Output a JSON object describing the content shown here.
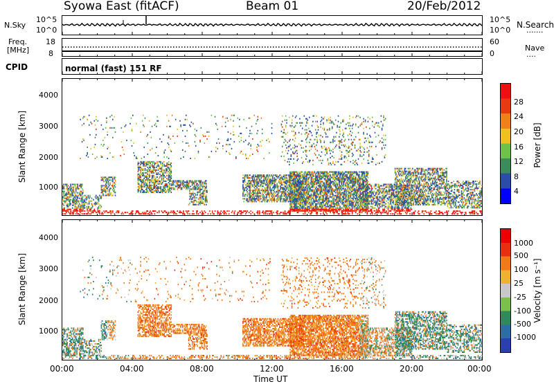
{
  "header": {
    "station": "Syowa East (fitACF)",
    "beam": "Beam 01",
    "date": "20/Feb/2012"
  },
  "panels": {
    "nsky": {
      "label": "N.Sky",
      "left_ticks": [
        "10^5",
        "10^0"
      ],
      "right_label": "N.Search",
      "right_ticks": [
        "10^5",
        "10^0"
      ],
      "right_marker": "......."
    },
    "freq": {
      "label_line1": "Freq.",
      "label_line2": "[MHz]",
      "left_ticks": [
        "18",
        "8"
      ],
      "right_label": "Nave",
      "right_ticks": [
        "60",
        "0"
      ],
      "right_marker": "...."
    },
    "cpid": {
      "label": "CPID",
      "text": "normal (fast) 151 RF"
    }
  },
  "chart_data": [
    {
      "type": "heatmap",
      "title": "",
      "ylabel": "Slant Range [km]",
      "y_ticks": [
        "1000",
        "2000",
        "3000",
        "4000"
      ],
      "ylim": [
        180,
        4600
      ],
      "colorbar_label": "Power [dB]",
      "colorbar_ticks": [
        "4",
        "8",
        "12",
        "16",
        "20",
        "24",
        "28"
      ],
      "colors": [
        "#0000ff",
        "#2a4ea8",
        "#3c8c5a",
        "#6ec24a",
        "#f0c020",
        "#f08018",
        "#e83a10",
        "#ee1010"
      ]
    },
    {
      "type": "heatmap",
      "title": "",
      "ylabel": "Slant Range [km]",
      "y_ticks": [
        "1000",
        "2000",
        "3000",
        "4000"
      ],
      "ylim": [
        180,
        4600
      ],
      "colorbar_label": "Velocity [m s⁻¹]",
      "colorbar_ticks": [
        "1000",
        "500",
        "100",
        "25",
        "-25",
        "-100",
        "-500",
        "-1000"
      ],
      "colors": [
        "#2a3fb0",
        "#2a6ea8",
        "#2e8a5a",
        "#7ac04a",
        "#c8c8c8",
        "#f0b030",
        "#f07a18",
        "#e83010",
        "#ee0000"
      ]
    }
  ],
  "x_axis": {
    "label": "Time UT",
    "ticks": [
      "00:00",
      "04:00",
      "08:00",
      "12:00",
      "16:00",
      "20:00",
      "00:00"
    ],
    "range_hours": [
      0,
      24
    ]
  }
}
